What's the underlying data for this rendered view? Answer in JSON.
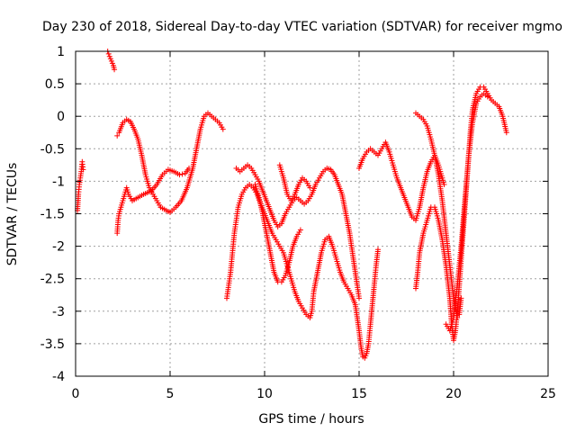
{
  "chart_data": {
    "type": "scatter",
    "title": "Day 230 of 2018, Sidereal Day-to-day VTEC variation (SDTVAR) for receiver mgmo",
    "xlabel": "GPS time / hours",
    "ylabel": "SDTVAR / TECUs",
    "xlim": [
      0,
      25
    ],
    "ylim": [
      -4,
      1
    ],
    "xticks": [
      "0",
      "5",
      "10",
      "15",
      "20",
      "25"
    ],
    "yticks": [
      "1",
      "0.5",
      "0",
      "-0.5",
      "-1",
      "-1.5",
      "-2",
      "-2.5",
      "-3",
      "-3.5",
      "-4"
    ],
    "grid": true,
    "marker": "+",
    "series": [
      {
        "name": "SDTVAR",
        "color": "#ff0000",
        "segments": [
          [
            [
              0.1,
              -1.45
            ],
            [
              0.15,
              -1.2
            ],
            [
              0.2,
              -1.05
            ],
            [
              0.25,
              -0.95
            ],
            [
              0.3,
              -0.85
            ],
            [
              0.35,
              -0.7
            ],
            [
              0.4,
              -0.82
            ]
          ],
          [
            [
              1.7,
              1.0
            ],
            [
              1.8,
              0.92
            ],
            [
              1.9,
              0.85
            ],
            [
              2.0,
              0.78
            ],
            [
              2.05,
              0.72
            ]
          ],
          [
            [
              2.2,
              -1.8
            ],
            [
              2.25,
              -1.6
            ],
            [
              2.3,
              -1.5
            ],
            [
              2.4,
              -1.4
            ],
            [
              2.5,
              -1.3
            ],
            [
              2.6,
              -1.2
            ],
            [
              2.7,
              -1.1
            ],
            [
              2.8,
              -1.2
            ],
            [
              3.0,
              -1.3
            ],
            [
              3.3,
              -1.25
            ],
            [
              3.6,
              -1.2
            ],
            [
              4.0,
              -1.15
            ],
            [
              4.3,
              -1.05
            ],
            [
              4.6,
              -0.9
            ],
            [
              4.9,
              -0.82
            ],
            [
              5.2,
              -0.85
            ],
            [
              5.5,
              -0.9
            ],
            [
              5.8,
              -0.88
            ],
            [
              6.0,
              -0.8
            ]
          ],
          [
            [
              2.2,
              -0.3
            ],
            [
              2.3,
              -0.25
            ],
            [
              2.5,
              -0.1
            ],
            [
              2.7,
              -0.05
            ],
            [
              2.9,
              -0.08
            ],
            [
              3.1,
              -0.2
            ],
            [
              3.3,
              -0.35
            ],
            [
              3.5,
              -0.6
            ],
            [
              3.7,
              -0.9
            ],
            [
              3.9,
              -1.1
            ],
            [
              4.1,
              -1.2
            ],
            [
              4.3,
              -1.3
            ],
            [
              4.5,
              -1.4
            ],
            [
              4.8,
              -1.45
            ],
            [
              5.0,
              -1.48
            ],
            [
              5.3,
              -1.4
            ],
            [
              5.6,
              -1.3
            ],
            [
              5.9,
              -1.1
            ],
            [
              6.2,
              -0.8
            ],
            [
              6.4,
              -0.5
            ],
            [
              6.6,
              -0.2
            ],
            [
              6.8,
              0.0
            ],
            [
              7.0,
              0.05
            ],
            [
              7.2,
              0.0
            ],
            [
              7.4,
              -0.05
            ],
            [
              7.6,
              -0.1
            ],
            [
              7.8,
              -0.2
            ]
          ],
          [
            [
              8.0,
              -2.8
            ],
            [
              8.1,
              -2.6
            ],
            [
              8.2,
              -2.4
            ],
            [
              8.3,
              -2.1
            ],
            [
              8.4,
              -1.8
            ],
            [
              8.5,
              -1.6
            ],
            [
              8.6,
              -1.4
            ],
            [
              8.8,
              -1.2
            ],
            [
              9.0,
              -1.1
            ],
            [
              9.2,
              -1.05
            ],
            [
              9.4,
              -1.1
            ],
            [
              9.6,
              -1.2
            ],
            [
              9.8,
              -1.35
            ],
            [
              10.0,
              -1.5
            ],
            [
              10.2,
              -1.65
            ],
            [
              10.4,
              -1.8
            ],
            [
              10.6,
              -1.9
            ],
            [
              10.8,
              -2.0
            ],
            [
              11.0,
              -2.1
            ],
            [
              11.2,
              -2.3
            ],
            [
              11.4,
              -2.5
            ],
            [
              11.6,
              -2.7
            ],
            [
              11.8,
              -2.85
            ],
            [
              12.0,
              -2.95
            ],
            [
              12.2,
              -3.05
            ],
            [
              12.4,
              -3.1
            ],
            [
              12.5,
              -3.0
            ],
            [
              12.6,
              -2.7
            ],
            [
              12.8,
              -2.4
            ],
            [
              13.0,
              -2.1
            ],
            [
              13.2,
              -1.9
            ],
            [
              13.4,
              -1.85
            ],
            [
              13.6,
              -2.0
            ],
            [
              13.8,
              -2.2
            ],
            [
              14.0,
              -2.4
            ],
            [
              14.2,
              -2.55
            ],
            [
              14.4,
              -2.65
            ],
            [
              14.6,
              -2.75
            ],
            [
              14.8,
              -2.9
            ],
            [
              15.0,
              -3.3
            ],
            [
              15.1,
              -3.55
            ],
            [
              15.2,
              -3.7
            ],
            [
              15.3,
              -3.72
            ],
            [
              15.4,
              -3.65
            ],
            [
              15.5,
              -3.5
            ],
            [
              15.6,
              -3.2
            ],
            [
              15.8,
              -2.6
            ],
            [
              15.9,
              -2.3
            ],
            [
              16.0,
              -2.05
            ]
          ],
          [
            [
              8.5,
              -0.8
            ],
            [
              8.7,
              -0.85
            ],
            [
              8.9,
              -0.8
            ],
            [
              9.1,
              -0.75
            ],
            [
              9.3,
              -0.8
            ],
            [
              9.5,
              -0.9
            ],
            [
              9.7,
              -1.0
            ],
            [
              9.9,
              -1.15
            ],
            [
              10.1,
              -1.3
            ],
            [
              10.3,
              -1.45
            ],
            [
              10.5,
              -1.6
            ],
            [
              10.7,
              -1.7
            ],
            [
              10.9,
              -1.65
            ],
            [
              11.1,
              -1.5
            ],
            [
              11.3,
              -1.4
            ],
            [
              11.5,
              -1.3
            ],
            [
              11.7,
              -1.25
            ],
            [
              11.9,
              -1.3
            ],
            [
              12.1,
              -1.35
            ],
            [
              12.3,
              -1.3
            ],
            [
              12.5,
              -1.2
            ],
            [
              12.7,
              -1.05
            ],
            [
              12.9,
              -0.95
            ],
            [
              13.1,
              -0.85
            ],
            [
              13.3,
              -0.8
            ],
            [
              13.5,
              -0.82
            ],
            [
              13.7,
              -0.9
            ],
            [
              13.9,
              -1.05
            ],
            [
              14.1,
              -1.2
            ],
            [
              14.3,
              -1.5
            ],
            [
              14.5,
              -1.8
            ],
            [
              14.7,
              -2.2
            ],
            [
              14.9,
              -2.6
            ],
            [
              15.0,
              -2.8
            ]
          ],
          [
            [
              9.5,
              -1.05
            ],
            [
              9.7,
              -1.25
            ],
            [
              9.9,
              -1.5
            ],
            [
              10.1,
              -1.8
            ],
            [
              10.3,
              -2.1
            ],
            [
              10.5,
              -2.4
            ],
            [
              10.7,
              -2.55
            ],
            [
              10.9,
              -2.55
            ],
            [
              11.1,
              -2.45
            ],
            [
              11.3,
              -2.25
            ],
            [
              11.5,
              -2.0
            ],
            [
              11.7,
              -1.85
            ],
            [
              11.9,
              -1.75
            ]
          ],
          [
            [
              10.8,
              -0.75
            ],
            [
              11.0,
              -0.95
            ],
            [
              11.2,
              -1.2
            ],
            [
              11.4,
              -1.3
            ],
            [
              11.6,
              -1.2
            ],
            [
              11.8,
              -1.05
            ],
            [
              12.0,
              -0.95
            ],
            [
              12.2,
              -1.0
            ],
            [
              12.4,
              -1.1
            ]
          ],
          [
            [
              15.0,
              -0.8
            ],
            [
              15.2,
              -0.65
            ],
            [
              15.4,
              -0.55
            ],
            [
              15.6,
              -0.5
            ],
            [
              15.8,
              -0.55
            ],
            [
              16.0,
              -0.6
            ],
            [
              16.2,
              -0.5
            ],
            [
              16.4,
              -0.4
            ],
            [
              16.6,
              -0.55
            ],
            [
              16.8,
              -0.75
            ],
            [
              17.0,
              -0.95
            ],
            [
              17.2,
              -1.1
            ],
            [
              17.4,
              -1.25
            ],
            [
              17.6,
              -1.4
            ],
            [
              17.8,
              -1.55
            ],
            [
              18.0,
              -1.6
            ],
            [
              18.2,
              -1.4
            ],
            [
              18.4,
              -1.1
            ],
            [
              18.6,
              -0.85
            ],
            [
              18.8,
              -0.7
            ],
            [
              19.0,
              -0.6
            ],
            [
              19.2,
              -0.75
            ],
            [
              19.4,
              -0.95
            ],
            [
              19.5,
              -1.05
            ]
          ],
          [
            [
              18.0,
              0.05
            ],
            [
              18.2,
              0.0
            ],
            [
              18.4,
              -0.05
            ],
            [
              18.6,
              -0.15
            ],
            [
              18.8,
              -0.35
            ],
            [
              19.0,
              -0.6
            ],
            [
              19.2,
              -0.9
            ],
            [
              19.4,
              -1.3
            ],
            [
              19.6,
              -1.8
            ],
            [
              19.8,
              -2.3
            ],
            [
              20.0,
              -2.8
            ],
            [
              20.2,
              -3.1
            ],
            [
              20.3,
              -3.05
            ],
            [
              20.4,
              -2.8
            ]
          ],
          [
            [
              18.0,
              -2.65
            ],
            [
              18.1,
              -2.4
            ],
            [
              18.2,
              -2.1
            ],
            [
              18.4,
              -1.8
            ],
            [
              18.6,
              -1.6
            ],
            [
              18.8,
              -1.4
            ],
            [
              19.0,
              -1.4
            ],
            [
              19.2,
              -1.6
            ],
            [
              19.4,
              -1.9
            ],
            [
              19.6,
              -2.3
            ],
            [
              19.8,
              -2.8
            ],
            [
              19.9,
              -3.2
            ],
            [
              20.0,
              -3.45
            ],
            [
              20.1,
              -3.3
            ],
            [
              20.2,
              -3.0
            ],
            [
              20.3,
              -2.6
            ],
            [
              20.4,
              -2.2
            ],
            [
              20.5,
              -1.8
            ],
            [
              20.6,
              -1.4
            ],
            [
              20.7,
              -1.0
            ],
            [
              20.8,
              -0.6
            ],
            [
              20.9,
              -0.2
            ],
            [
              21.0,
              0.1
            ],
            [
              21.2,
              0.35
            ],
            [
              21.4,
              0.45
            ],
            [
              21.6,
              0.45
            ],
            [
              21.8,
              0.35
            ],
            [
              22.0,
              0.25
            ],
            [
              22.2,
              0.2
            ],
            [
              22.4,
              0.15
            ],
            [
              22.6,
              0.0
            ],
            [
              22.8,
              -0.25
            ]
          ],
          [
            [
              19.6,
              -3.2
            ],
            [
              19.8,
              -3.3
            ],
            [
              20.0,
              -3.1
            ],
            [
              20.2,
              -2.6
            ],
            [
              20.4,
              -2.0
            ],
            [
              20.6,
              -1.3
            ],
            [
              20.8,
              -0.6
            ],
            [
              21.0,
              -0.1
            ],
            [
              21.2,
              0.2
            ],
            [
              21.4,
              0.3
            ],
            [
              21.6,
              0.35
            ],
            [
              21.8,
              0.3
            ]
          ]
        ]
      }
    ]
  }
}
